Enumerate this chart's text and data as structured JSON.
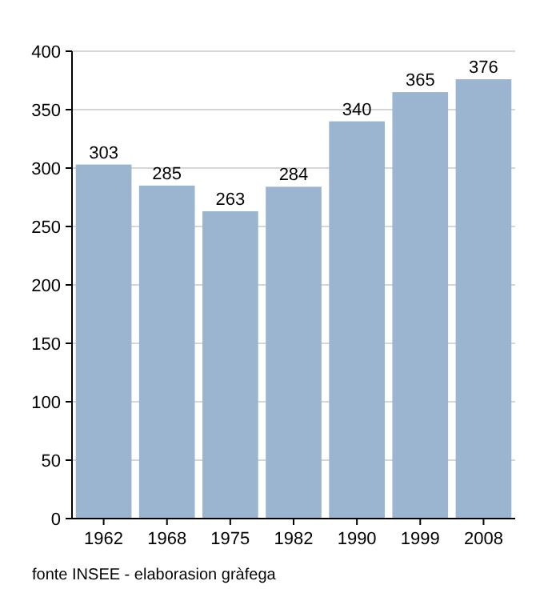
{
  "chart_data": {
    "type": "bar",
    "categories": [
      "1962",
      "1968",
      "1975",
      "1982",
      "1990",
      "1999",
      "2008"
    ],
    "values": [
      303,
      285,
      263,
      284,
      340,
      365,
      376
    ],
    "color": "#9bb4cf",
    "data_labels": true,
    "ylim": [
      0,
      400
    ],
    "yticks": [
      0,
      50,
      100,
      150,
      200,
      250,
      300,
      350,
      400
    ],
    "grid": "y",
    "annotations": [
      "fonte INSEE - elaborasion gràfega"
    ]
  }
}
